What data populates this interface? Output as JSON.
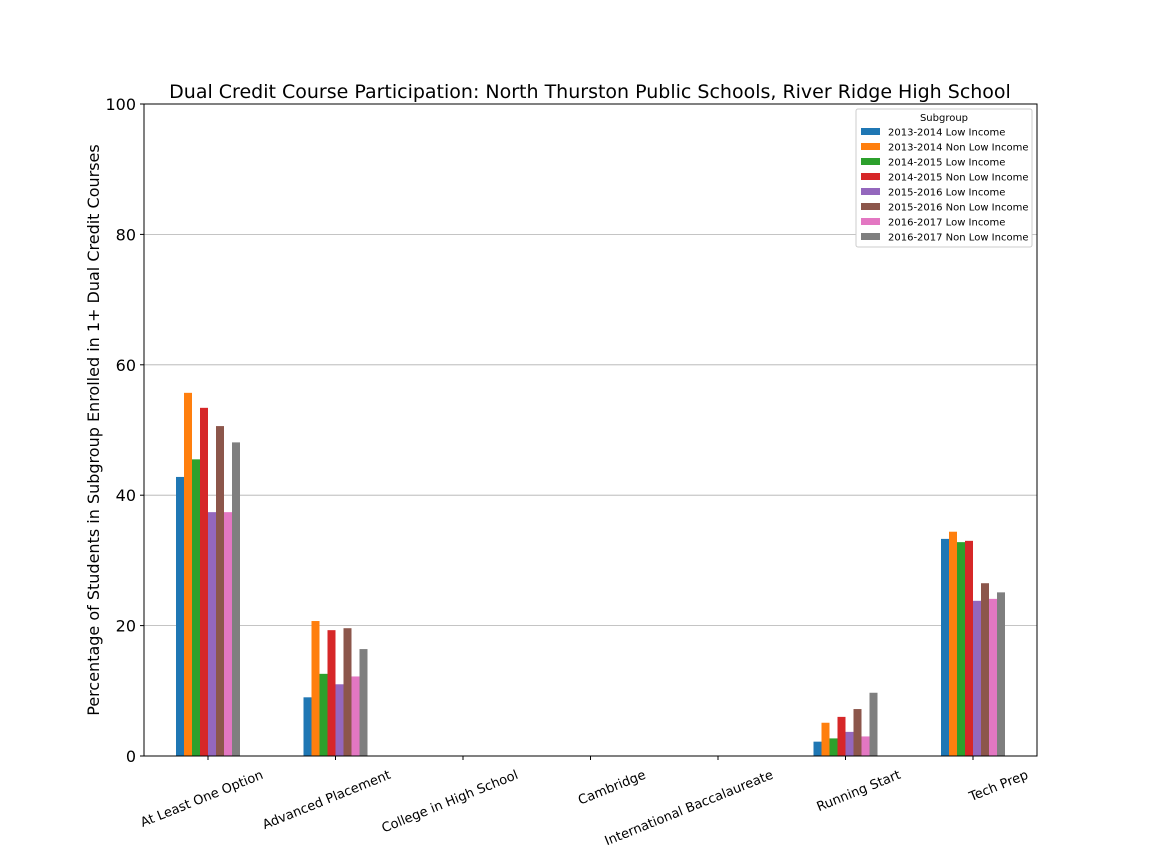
{
  "chart_data": {
    "type": "bar",
    "title": "Dual Credit Course Participation: North Thurston Public Schools, River Ridge High School",
    "xlabel": "",
    "ylabel": "Percentage of Students in Subgroup Enrolled in 1+ Dual Credit Courses",
    "ylim": [
      0,
      100
    ],
    "yticks": [
      0,
      20,
      40,
      60,
      80,
      100
    ],
    "grid": "y",
    "legend_title": "Subgroup",
    "legend_position": "top-right",
    "categories": [
      "At Least One Option",
      "Advanced Placement",
      "College in High School",
      "Cambridge",
      "International Baccalaureate",
      "Running Start",
      "Tech Prep"
    ],
    "series": [
      {
        "name": "2013-2014 Low Income",
        "color": "#1f77b4",
        "values": [
          42.8,
          9.0,
          0,
          0,
          0,
          2.2,
          33.3
        ]
      },
      {
        "name": "2013-2014 Non Low Income",
        "color": "#ff7f0e",
        "values": [
          55.7,
          20.7,
          0,
          0,
          0,
          5.1,
          34.4
        ]
      },
      {
        "name": "2014-2015 Low Income",
        "color": "#2ca02c",
        "values": [
          45.5,
          12.6,
          0,
          0,
          0,
          2.7,
          32.8
        ]
      },
      {
        "name": "2014-2015 Non Low Income",
        "color": "#d62728",
        "values": [
          53.4,
          19.3,
          0,
          0,
          0,
          6.0,
          33.0
        ]
      },
      {
        "name": "2015-2016 Low Income",
        "color": "#9467bd",
        "values": [
          37.4,
          11.0,
          0,
          0,
          0,
          3.7,
          23.8
        ]
      },
      {
        "name": "2015-2016 Non Low Income",
        "color": "#8c564b",
        "values": [
          50.6,
          19.6,
          0,
          0,
          0,
          7.2,
          26.5
        ]
      },
      {
        "name": "2016-2017 Low Income",
        "color": "#e377c2",
        "values": [
          37.4,
          12.2,
          0,
          0,
          0,
          3.0,
          24.1
        ]
      },
      {
        "name": "2016-2017 Non Low Income",
        "color": "#7f7f7f",
        "values": [
          48.1,
          16.4,
          0,
          0,
          0,
          9.7,
          25.1
        ]
      }
    ]
  }
}
